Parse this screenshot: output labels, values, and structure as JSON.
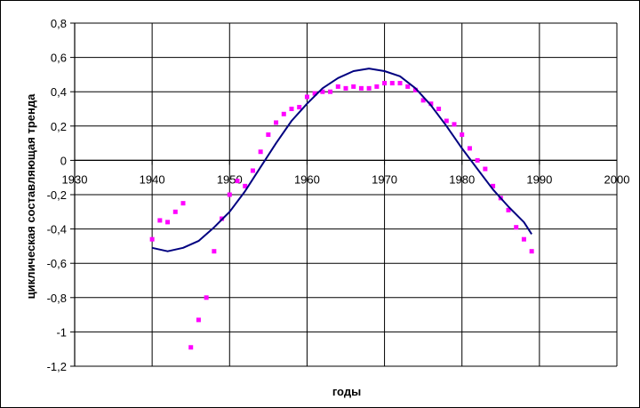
{
  "chart_data": {
    "type": "line",
    "title": "",
    "xlabel": "годы",
    "ylabel": "циклическая составляющая тренда",
    "xlim": [
      1930,
      2000
    ],
    "ylim": [
      -1.2,
      0.8
    ],
    "x_ticks": [
      1930,
      1940,
      1950,
      1960,
      1970,
      1980,
      1990,
      2000
    ],
    "y_ticks": [
      0.8,
      0.6,
      0.4,
      0.2,
      0,
      -0.2,
      -0.4,
      -0.6,
      -0.8,
      -1,
      -1.2
    ],
    "x_tick_labels": [
      "1930",
      "1940",
      "1950",
      "1960",
      "1970",
      "1980",
      "1990",
      "2000"
    ],
    "y_tick_labels": [
      "0,8",
      "0,6",
      "0,4",
      "0,2",
      "0",
      "-0,2",
      "-0,4",
      "-0,6",
      "-0,8",
      "-1",
      "-1,2"
    ],
    "grid": true,
    "legend": "none",
    "series": [
      {
        "kind": "scatter",
        "marker": "square",
        "color": "#ff00ff",
        "points": [
          [
            1940,
            -0.46
          ],
          [
            1941,
            -0.35
          ],
          [
            1942,
            -0.36
          ],
          [
            1943,
            -0.3
          ],
          [
            1944,
            -0.25
          ],
          [
            1945,
            -1.09
          ],
          [
            1946,
            -0.93
          ],
          [
            1947,
            -0.8
          ],
          [
            1948,
            -0.53
          ],
          [
            1949,
            -0.34
          ],
          [
            1950,
            -0.2
          ],
          [
            1951,
            -0.12
          ],
          [
            1952,
            -0.15
          ],
          [
            1953,
            -0.06
          ],
          [
            1954,
            0.05
          ],
          [
            1955,
            0.15
          ],
          [
            1956,
            0.22
          ],
          [
            1957,
            0.27
          ],
          [
            1958,
            0.3
          ],
          [
            1959,
            0.31
          ],
          [
            1960,
            0.37
          ],
          [
            1961,
            0.39
          ],
          [
            1962,
            0.4
          ],
          [
            1963,
            0.4
          ],
          [
            1964,
            0.43
          ],
          [
            1965,
            0.42
          ],
          [
            1966,
            0.43
          ],
          [
            1967,
            0.42
          ],
          [
            1968,
            0.42
          ],
          [
            1969,
            0.43
          ],
          [
            1970,
            0.45
          ],
          [
            1971,
            0.45
          ],
          [
            1972,
            0.45
          ],
          [
            1973,
            0.43
          ],
          [
            1974,
            0.41
          ],
          [
            1975,
            0.35
          ],
          [
            1976,
            0.33
          ],
          [
            1977,
            0.3
          ],
          [
            1978,
            0.23
          ],
          [
            1979,
            0.21
          ],
          [
            1980,
            0.15
          ],
          [
            1981,
            0.07
          ],
          [
            1982,
            0.0
          ],
          [
            1983,
            -0.05
          ],
          [
            1984,
            -0.15
          ],
          [
            1985,
            -0.22
          ],
          [
            1986,
            -0.29
          ],
          [
            1987,
            -0.39
          ],
          [
            1988,
            -0.46
          ],
          [
            1989,
            -0.53
          ]
        ]
      },
      {
        "kind": "line",
        "color": "#000080",
        "points": [
          [
            1940,
            -0.51
          ],
          [
            1942,
            -0.53
          ],
          [
            1944,
            -0.51
          ],
          [
            1946,
            -0.47
          ],
          [
            1948,
            -0.39
          ],
          [
            1950,
            -0.3
          ],
          [
            1952,
            -0.18
          ],
          [
            1954,
            -0.04
          ],
          [
            1956,
            0.1
          ],
          [
            1958,
            0.23
          ],
          [
            1960,
            0.33
          ],
          [
            1962,
            0.42
          ],
          [
            1964,
            0.48
          ],
          [
            1966,
            0.52
          ],
          [
            1968,
            0.535
          ],
          [
            1970,
            0.52
          ],
          [
            1972,
            0.49
          ],
          [
            1974,
            0.42
          ],
          [
            1976,
            0.32
          ],
          [
            1978,
            0.2
          ],
          [
            1980,
            0.07
          ],
          [
            1982,
            -0.05
          ],
          [
            1984,
            -0.17
          ],
          [
            1986,
            -0.27
          ],
          [
            1988,
            -0.36
          ],
          [
            1989,
            -0.43
          ]
        ]
      }
    ]
  }
}
